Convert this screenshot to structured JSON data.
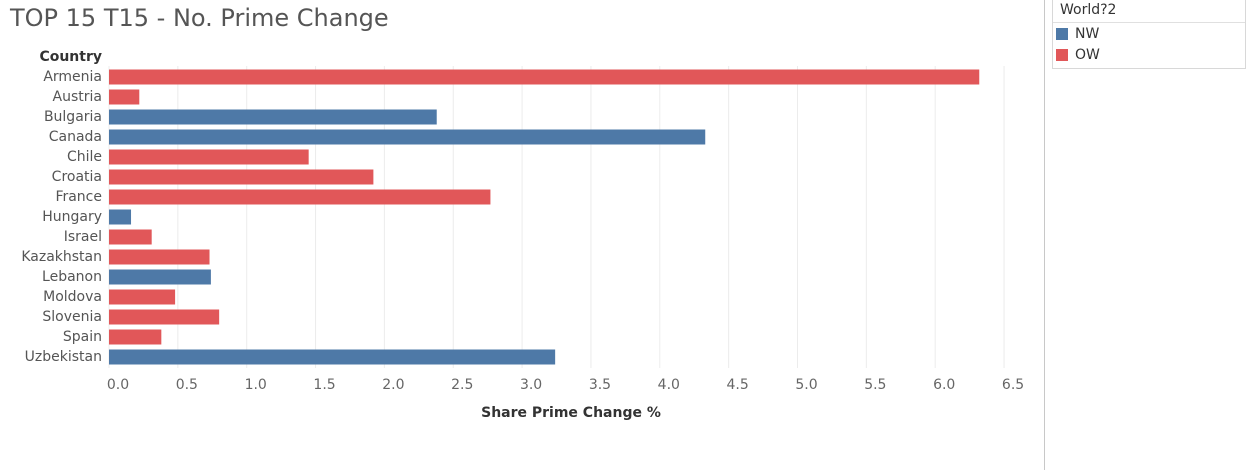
{
  "title": "TOP 15 T15 - No. Prime Change",
  "legend": {
    "title": "World?2",
    "items": [
      {
        "label": "NW",
        "color": "#4e79a7"
      },
      {
        "label": "OW",
        "color": "#e15759"
      }
    ]
  },
  "chart_data": {
    "type": "bar",
    "orientation": "horizontal",
    "ylabel": "Country",
    "xlabel": "Share Prime Change %",
    "xlim": [
      0,
      6.5
    ],
    "xticks": [
      "0.0",
      "0.5",
      "1.0",
      "1.5",
      "2.0",
      "2.5",
      "3.0",
      "3.5",
      "4.0",
      "4.5",
      "5.0",
      "5.5",
      "6.0",
      "6.5"
    ],
    "grid": true,
    "legend_position": "top-right",
    "categories": [
      "Armenia",
      "Austria",
      "Bulgaria",
      "Canada",
      "Chile",
      "Croatia",
      "France",
      "Hungary",
      "Israel",
      "Kazakhstan",
      "Lebanon",
      "Moldova",
      "Slovenia",
      "Spain",
      "Uzbekistan"
    ],
    "values": [
      6.32,
      0.22,
      2.38,
      4.33,
      1.45,
      1.92,
      2.77,
      0.16,
      0.31,
      0.73,
      0.74,
      0.48,
      0.8,
      0.38,
      3.24
    ],
    "groups": [
      "OW",
      "OW",
      "NW",
      "NW",
      "OW",
      "OW",
      "OW",
      "NW",
      "OW",
      "OW",
      "NW",
      "OW",
      "OW",
      "OW",
      "NW"
    ]
  }
}
